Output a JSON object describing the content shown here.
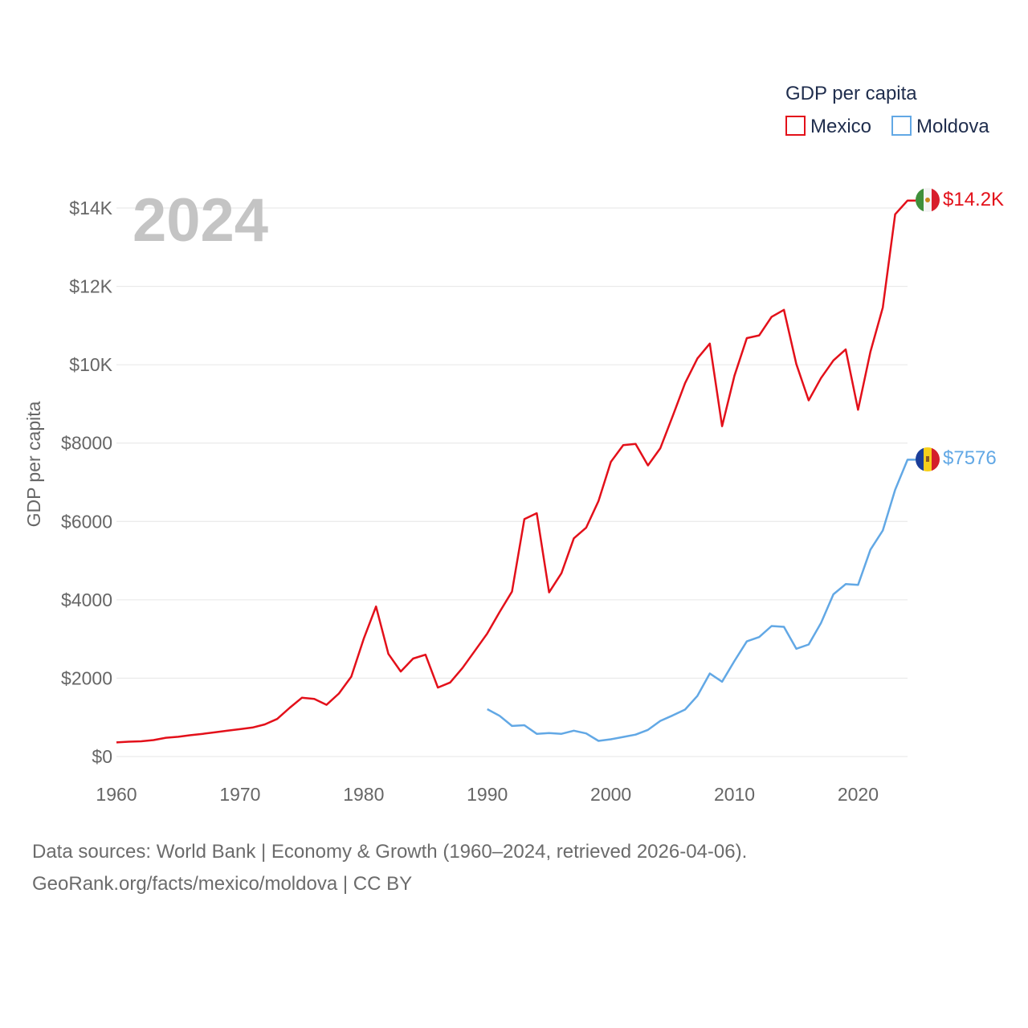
{
  "chart_data": {
    "type": "line",
    "title": "",
    "year_label": "2024",
    "xlabel": "",
    "ylabel": "GDP per capita",
    "xlim": [
      1960,
      2024
    ],
    "ylim": [
      0,
      14200
    ],
    "x_ticks": [
      1960,
      1970,
      1980,
      1990,
      2000,
      2010,
      2020
    ],
    "y_ticks": [
      {
        "value": 0,
        "label": "$0"
      },
      {
        "value": 2000,
        "label": "$2000"
      },
      {
        "value": 4000,
        "label": "$4000"
      },
      {
        "value": 6000,
        "label": "$6000"
      },
      {
        "value": 8000,
        "label": "$8000"
      },
      {
        "value": 10000,
        "label": "$10K"
      },
      {
        "value": 12000,
        "label": "$12K"
      },
      {
        "value": 14000,
        "label": "$14K"
      }
    ],
    "legend": {
      "title": "GDP per capita",
      "position": "top-right"
    },
    "series": [
      {
        "name": "Mexico",
        "color": "#e3101a",
        "end_label": "$14.2K",
        "flag": "mexico-flag",
        "x": [
          1960,
          1961,
          1962,
          1963,
          1964,
          1965,
          1966,
          1967,
          1968,
          1969,
          1970,
          1971,
          1972,
          1973,
          1974,
          1975,
          1976,
          1977,
          1978,
          1979,
          1980,
          1981,
          1982,
          1983,
          1984,
          1985,
          1986,
          1987,
          1988,
          1989,
          1990,
          1991,
          1992,
          1993,
          1994,
          1995,
          1996,
          1997,
          1998,
          1999,
          2000,
          2001,
          2002,
          2003,
          2004,
          2005,
          2006,
          2007,
          2008,
          2009,
          2010,
          2011,
          2012,
          2013,
          2014,
          2015,
          2016,
          2017,
          2018,
          2019,
          2020,
          2021,
          2022,
          2023,
          2024
        ],
        "values": [
          360,
          380,
          390,
          420,
          480,
          505,
          545,
          580,
          620,
          660,
          700,
          740,
          820,
          960,
          1240,
          1500,
          1470,
          1320,
          1610,
          2040,
          3000,
          3830,
          2620,
          2170,
          2500,
          2600,
          1760,
          1890,
          2260,
          2700,
          3140,
          3690,
          4210,
          6060,
          6210,
          4190,
          4680,
          5570,
          5840,
          6520,
          7520,
          7950,
          7980,
          7430,
          7870,
          8690,
          9530,
          10160,
          10540,
          8430,
          9720,
          10680,
          10750,
          11220,
          11400,
          10020,
          9090,
          9660,
          10110,
          10390,
          8850,
          10330,
          11460,
          13840,
          14190
        ]
      },
      {
        "name": "Moldova",
        "color": "#62a8e5",
        "end_label": "$7576",
        "flag": "moldova-flag",
        "x": [
          1990,
          1991,
          1992,
          1993,
          1994,
          1995,
          1996,
          1997,
          1998,
          1999,
          2000,
          2001,
          2002,
          2003,
          2004,
          2005,
          2006,
          2007,
          2008,
          2009,
          2010,
          2011,
          2012,
          2013,
          2014,
          2015,
          2016,
          2017,
          2018,
          2019,
          2020,
          2021,
          2022,
          2023,
          2024
        ],
        "values": [
          1210,
          1040,
          780,
          800,
          580,
          600,
          580,
          660,
          590,
          400,
          440,
          500,
          560,
          680,
          910,
          1050,
          1200,
          1550,
          2120,
          1910,
          2440,
          2940,
          3050,
          3330,
          3310,
          2750,
          2860,
          3410,
          4140,
          4400,
          4380,
          5280,
          5770,
          6810,
          7576
        ]
      }
    ]
  },
  "footer": {
    "source_line1": "Data sources: World Bank | Economy & Growth (1960–2024, retrieved 2026-04-06).",
    "source_line2": "GeoRank.org/facts/mexico/moldova | CC BY"
  }
}
